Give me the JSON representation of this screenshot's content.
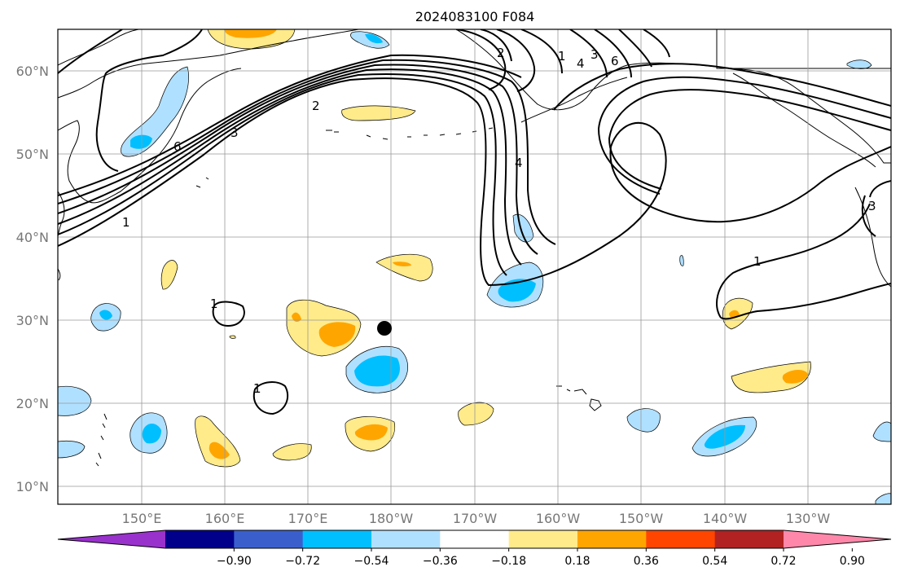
{
  "title": "2024083100 F084",
  "lat_labels": [
    "60°N",
    "50°N",
    "40°N",
    "30°N",
    "20°N",
    "10°N"
  ],
  "lon_labels": [
    "150°E",
    "160°E",
    "170°E",
    "180°W",
    "170°W",
    "160°W",
    "150°W",
    "140°W",
    "130°W"
  ],
  "colorbar": {
    "ticks": [
      "−0.90",
      "−0.72",
      "−0.54",
      "−0.36",
      "−0.18",
      "0.18",
      "0.36",
      "0.54",
      "0.72",
      "0.90"
    ],
    "colors": [
      "#9932cc",
      "#00008b",
      "#3a5fcd",
      "#00bfff",
      "#b0e0ff",
      "#ffffff",
      "#ffeb8a",
      "#ffa500",
      "#ff4500",
      "#b22222",
      "#ff88aa"
    ]
  },
  "contour_labels": [
    "1",
    "2",
    "3",
    "4",
    "6",
    "1",
    "1",
    "1",
    "2",
    "3",
    "4",
    "6",
    "3",
    "1"
  ],
  "marker": {
    "name": "black-dot"
  }
}
